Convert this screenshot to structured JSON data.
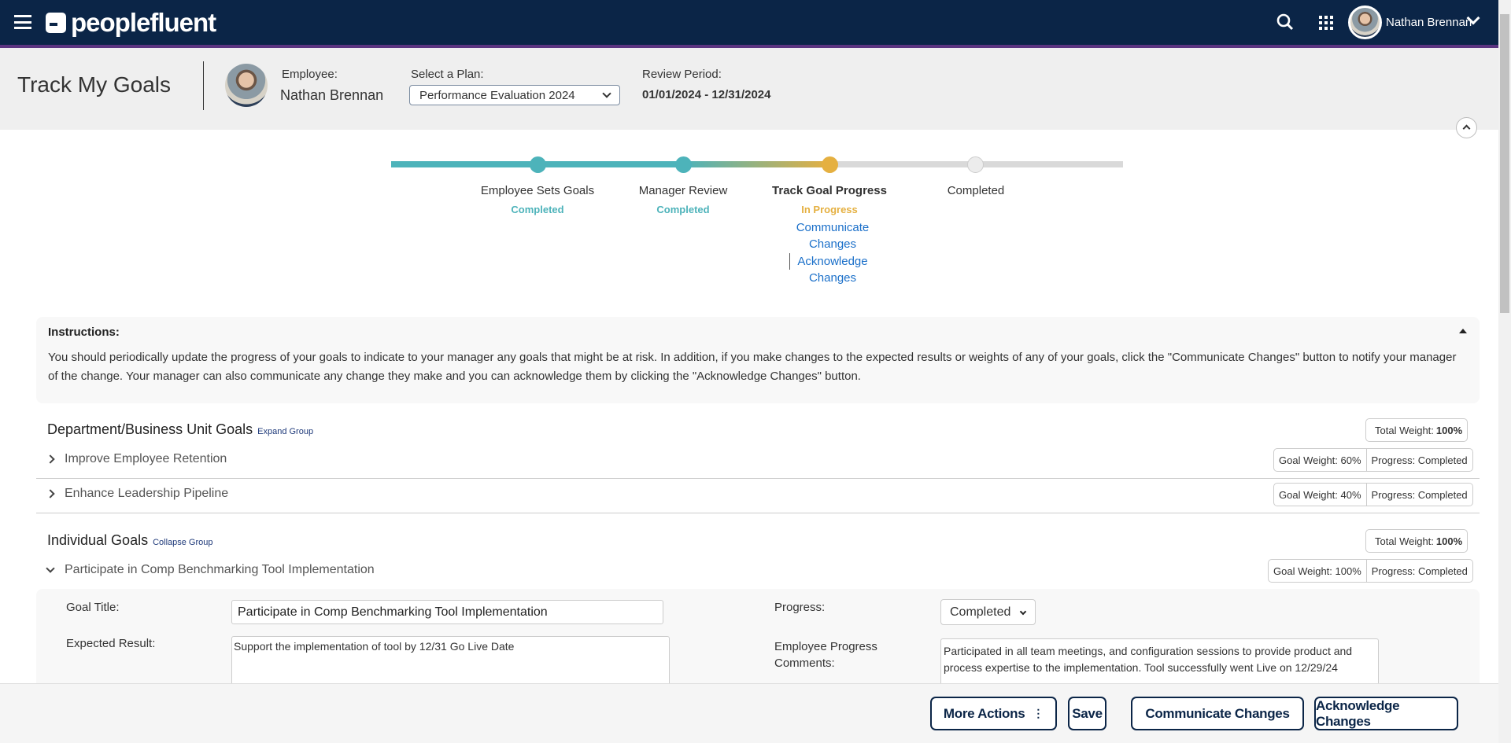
{
  "header": {
    "brand": "peoplefluent",
    "user_name": "Nathan Brennan",
    "icons": [
      "menu-icon",
      "search-icon",
      "apps-grid-icon",
      "chevron-down-icon"
    ]
  },
  "page": {
    "title": "Track My Goals",
    "employee_label": "Employee:",
    "employee_name": "Nathan Brennan",
    "plan_label": "Select a Plan:",
    "plan_value": "Performance Evaluation 2024",
    "review_label": "Review Period:",
    "review_value": "01/01/2024 - 12/31/2024"
  },
  "stepper": {
    "steps": [
      {
        "label": "Employee Sets Goals",
        "status": "Completed"
      },
      {
        "label": "Manager Review",
        "status": "Completed"
      },
      {
        "label": "Track Goal Progress",
        "status": "In Progress",
        "links": [
          "Communicate Changes",
          "Acknowledge Changes"
        ]
      },
      {
        "label": "Completed",
        "status": ""
      }
    ],
    "colors": {
      "completed": "#4db3ba",
      "in_progress": "#e5b041",
      "pending": "#d9d9d9"
    }
  },
  "instructions": {
    "title": "Instructions:",
    "text": "You should periodically update the progress of your goals to indicate to your manager any goals that might be at risk. In addition, if you make changes to the expected results or weights of any of your goals, click the \"Communicate Changes\" button to notify your manager of the change. Your manager can also communicate any change they make and you can acknowledge them by clicking the \"Acknowledge Changes\" button."
  },
  "groups": [
    {
      "title": "Department/Business Unit Goals",
      "toggle": "Expand Group",
      "total_label": "Total Weight:",
      "total_value": "100%",
      "goals": [
        {
          "title": "Improve Employee Retention",
          "weight": "Goal Weight: 60%",
          "progress": "Progress: Completed"
        },
        {
          "title": "Enhance Leadership Pipeline",
          "weight": "Goal Weight: 40%",
          "progress": "Progress: Completed"
        }
      ]
    },
    {
      "title": "Individual Goals",
      "toggle": "Collapse Group",
      "total_label": "Total Weight:",
      "total_value": "100%",
      "goals": [
        {
          "title": "Participate in Comp Benchmarking Tool Implementation",
          "weight": "Goal Weight: 100%",
          "progress": "Progress: Completed"
        }
      ]
    }
  ],
  "detail": {
    "goal_title_label": "Goal Title:",
    "goal_title_value": "Participate in Comp Benchmarking Tool Implementation",
    "expected_label": "Expected Result:",
    "expected_value": "Support the implementation of tool by 12/31 Go Live Date",
    "progress_label": "Progress:",
    "progress_value": "Completed",
    "comments_label": "Employee Progress Comments:",
    "comments_value": "Participated in all team meetings, and configuration sessions to provide product and process expertise to the implementation.  Tool successfully went Live on 12/29/24"
  },
  "footer": {
    "more_actions": "More Actions",
    "save": "Save",
    "communicate": "Communicate Changes",
    "acknowledge": "Acknowledge Changes"
  }
}
